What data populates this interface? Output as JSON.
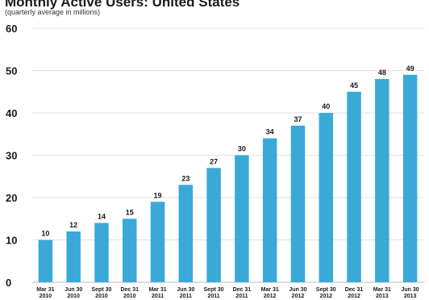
{
  "chart_data": {
    "type": "bar",
    "title": "Monthly Active Users: United States",
    "subtitle": "(quarterly average in millions)",
    "categories": [
      [
        "Mar 31",
        "2010"
      ],
      [
        "Jun 30",
        "2010"
      ],
      [
        "Sept 30",
        "2010"
      ],
      [
        "Dec 31",
        "2010"
      ],
      [
        "Mar 31",
        "2011"
      ],
      [
        "Jun 30",
        "2011"
      ],
      [
        "Sept 30",
        "2011"
      ],
      [
        "Dec 31",
        "2011"
      ],
      [
        "Mar 31",
        "2012"
      ],
      [
        "Jun 30",
        "2012"
      ],
      [
        "Sept 30",
        "2012"
      ],
      [
        "Dec 31",
        "2012"
      ],
      [
        "Mar 31",
        "2013"
      ],
      [
        "Jun 30",
        "2013"
      ]
    ],
    "values": [
      10,
      12,
      14,
      15,
      19,
      23,
      27,
      30,
      34,
      37,
      40,
      45,
      48,
      49
    ],
    "data_labels": [
      "10",
      "12",
      "14",
      "15",
      "19",
      "23",
      "27",
      "30",
      "34",
      "37",
      "40",
      "45",
      "48",
      "49"
    ],
    "ylim": [
      0,
      60
    ],
    "yticks": [
      0,
      10,
      20,
      30,
      40,
      50,
      60
    ],
    "grid": true,
    "legend": "none",
    "colors": {
      "bar": "#3aa9d8",
      "grid": "#e2e2e2",
      "axis": "#bdbdbd"
    }
  }
}
